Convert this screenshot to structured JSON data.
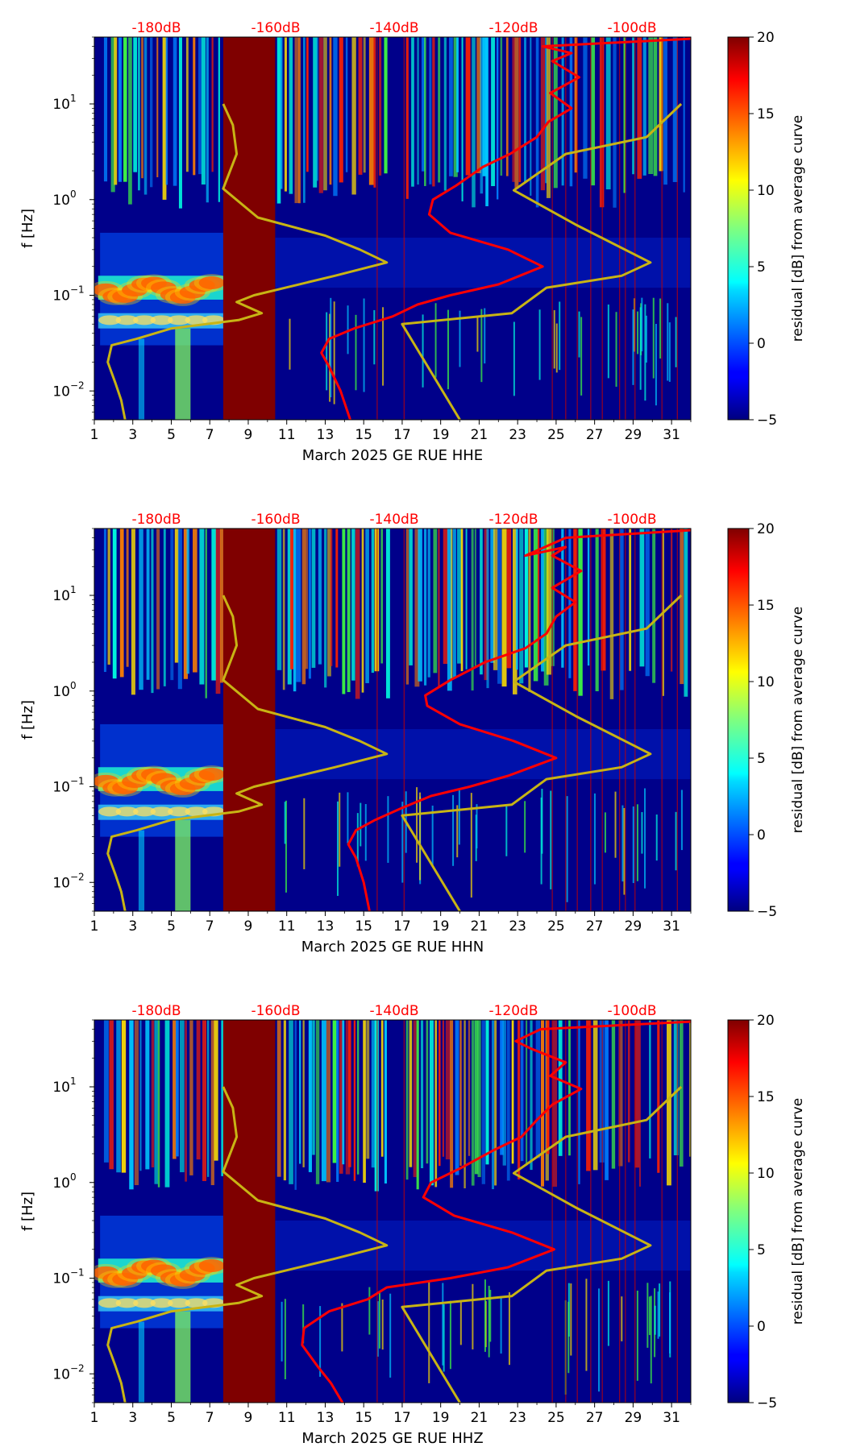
{
  "chart_data": [
    {
      "type": "heatmap",
      "channel": "HHE",
      "xlabel": "March 2025 GE RUE  HHE",
      "ylabel": "f [Hz]",
      "x_ticks": [
        "1",
        "3",
        "5",
        "7",
        "9",
        "11",
        "13",
        "15",
        "17",
        "19",
        "21",
        "23",
        "25",
        "27",
        "29",
        "31"
      ],
      "xlim": [
        1,
        32
      ],
      "y_scale": "log",
      "ylim": [
        0.005,
        50
      ],
      "y_ticks": [
        {
          "base": "10",
          "exp": "−2",
          "value": 0.01
        },
        {
          "base": "10",
          "exp": "−1",
          "value": 0.1
        },
        {
          "base": "10",
          "exp": "0",
          "value": 1
        },
        {
          "base": "10",
          "exp": "1",
          "value": 10
        }
      ],
      "top_labels": [
        "-180dB",
        "-160dB",
        "-140dB",
        "-120dB",
        "-100dB"
      ],
      "top_label_color": "#ff0000",
      "colorbar": {
        "label": "residual [dB] from average curve",
        "range": [
          -5,
          20
        ],
        "ticks": [
          "−5",
          "0",
          "5",
          "10",
          "15",
          "20"
        ],
        "colormap": "jet"
      },
      "gap_days": [
        7.7,
        10.4
      ],
      "series": [
        {
          "color": "#ff0000",
          "points": [
            [
              14.3,
              0.005
            ],
            [
              13.8,
              0.01
            ],
            [
              13.2,
              0.018
            ],
            [
              12.8,
              0.025
            ],
            [
              13.2,
              0.035
            ],
            [
              14.5,
              0.045
            ],
            [
              16.5,
              0.06
            ],
            [
              17.8,
              0.08
            ],
            [
              19.5,
              0.1
            ],
            [
              22,
              0.13
            ],
            [
              24.3,
              0.2
            ],
            [
              22.5,
              0.3
            ],
            [
              19.5,
              0.45
            ],
            [
              18.4,
              0.7
            ],
            [
              18.6,
              1.0
            ],
            [
              19.8,
              1.4
            ],
            [
              21.2,
              2.2
            ],
            [
              22.6,
              3.0
            ],
            [
              24,
              4.5
            ],
            [
              24.6,
              6.5
            ],
            [
              25.8,
              9
            ],
            [
              24.7,
              13
            ],
            [
              26.2,
              19
            ],
            [
              24.8,
              28
            ],
            [
              25.8,
              34
            ],
            [
              24.3,
              40
            ],
            [
              32,
              48
            ]
          ]
        },
        {
          "color": "#c8b414",
          "points": [
            [
              2.6,
              0.005
            ],
            [
              2.4,
              0.008
            ],
            [
              2.1,
              0.012
            ],
            [
              1.7,
              0.02
            ],
            [
              1.9,
              0.03
            ],
            [
              3.2,
              0.035
            ],
            [
              5.0,
              0.045
            ],
            [
              8.5,
              0.055
            ],
            [
              9.7,
              0.065
            ],
            [
              8.4,
              0.085
            ],
            [
              9.3,
              0.1
            ],
            [
              13.5,
              0.16
            ],
            [
              16.2,
              0.22
            ],
            [
              14.8,
              0.3
            ],
            [
              13.0,
              0.42
            ],
            [
              9.5,
              0.65
            ],
            [
              7.7,
              1.3
            ],
            [
              8.4,
              3
            ],
            [
              8.2,
              6
            ],
            [
              7.7,
              10
            ]
          ]
        },
        {
          "color": "#c8b414",
          "points": [
            [
              20,
              0.005
            ],
            [
              17,
              0.05
            ],
            [
              22.7,
              0.065
            ],
            [
              24.5,
              0.12
            ],
            [
              28.4,
              0.16
            ],
            [
              29.9,
              0.22
            ],
            [
              26,
              0.55
            ],
            [
              22.8,
              1.25
            ],
            [
              25.5,
              3
            ],
            [
              29.7,
              4.5
            ],
            [
              31.5,
              10
            ]
          ]
        }
      ]
    },
    {
      "type": "heatmap",
      "channel": "HHN",
      "xlabel": "March 2025 GE RUE  HHN",
      "ylabel": "f [Hz]",
      "x_ticks": [
        "1",
        "3",
        "5",
        "7",
        "9",
        "11",
        "13",
        "15",
        "17",
        "19",
        "21",
        "23",
        "25",
        "27",
        "29",
        "31"
      ],
      "xlim": [
        1,
        32
      ],
      "y_scale": "log",
      "ylim": [
        0.005,
        50
      ],
      "y_ticks": [
        {
          "base": "10",
          "exp": "−2",
          "value": 0.01
        },
        {
          "base": "10",
          "exp": "−1",
          "value": 0.1
        },
        {
          "base": "10",
          "exp": "0",
          "value": 1
        },
        {
          "base": "10",
          "exp": "1",
          "value": 10
        }
      ],
      "top_labels": [
        "-180dB",
        "-160dB",
        "-140dB",
        "-120dB",
        "-100dB"
      ],
      "top_label_color": "#ff0000",
      "colorbar": {
        "label": "residual [dB] from average curve",
        "range": [
          -5,
          20
        ],
        "ticks": [
          "−5",
          "0",
          "5",
          "10",
          "15",
          "20"
        ],
        "colormap": "jet"
      },
      "gap_days": [
        7.7,
        10.4
      ],
      "series": [
        {
          "color": "#ff0000",
          "points": [
            [
              15.3,
              0.005
            ],
            [
              15.0,
              0.01
            ],
            [
              14.6,
              0.018
            ],
            [
              14.2,
              0.025
            ],
            [
              14.6,
              0.035
            ],
            [
              15.6,
              0.045
            ],
            [
              17,
              0.06
            ],
            [
              18.5,
              0.08
            ],
            [
              20.5,
              0.1
            ],
            [
              22.5,
              0.13
            ],
            [
              25,
              0.2
            ],
            [
              22.8,
              0.3
            ],
            [
              20,
              0.45
            ],
            [
              18.3,
              0.7
            ],
            [
              18.2,
              0.9
            ],
            [
              19.5,
              1.3
            ],
            [
              21.3,
              2.0
            ],
            [
              23.4,
              2.8
            ],
            [
              24.5,
              4
            ],
            [
              25,
              6
            ],
            [
              26,
              8.5
            ],
            [
              24.8,
              12
            ],
            [
              26.3,
              18
            ],
            [
              24.8,
              26
            ],
            [
              25.5,
              32
            ],
            [
              23.4,
              26
            ],
            [
              25.5,
              40
            ],
            [
              32,
              48
            ]
          ]
        },
        {
          "color": "#c8b414",
          "points": [
            [
              2.6,
              0.005
            ],
            [
              2.4,
              0.008
            ],
            [
              2.1,
              0.012
            ],
            [
              1.7,
              0.02
            ],
            [
              1.9,
              0.03
            ],
            [
              3.2,
              0.035
            ],
            [
              5.0,
              0.045
            ],
            [
              8.5,
              0.055
            ],
            [
              9.7,
              0.065
            ],
            [
              8.4,
              0.085
            ],
            [
              9.3,
              0.1
            ],
            [
              13.5,
              0.16
            ],
            [
              16.2,
              0.22
            ],
            [
              14.8,
              0.3
            ],
            [
              13.0,
              0.42
            ],
            [
              9.5,
              0.65
            ],
            [
              7.7,
              1.3
            ],
            [
              8.4,
              3
            ],
            [
              8.2,
              6
            ],
            [
              7.7,
              10
            ]
          ]
        },
        {
          "color": "#c8b414",
          "points": [
            [
              20,
              0.005
            ],
            [
              17,
              0.05
            ],
            [
              22.7,
              0.065
            ],
            [
              24.5,
              0.12
            ],
            [
              28.4,
              0.16
            ],
            [
              29.9,
              0.22
            ],
            [
              26,
              0.55
            ],
            [
              22.8,
              1.25
            ],
            [
              25.5,
              3
            ],
            [
              29.7,
              4.5
            ],
            [
              31.5,
              10
            ]
          ]
        }
      ]
    },
    {
      "type": "heatmap",
      "channel": "HHZ",
      "xlabel": "March 2025 GE RUE  HHZ",
      "ylabel": "f [Hz]",
      "x_ticks": [
        "1",
        "3",
        "5",
        "7",
        "9",
        "11",
        "13",
        "15",
        "17",
        "19",
        "21",
        "23",
        "25",
        "27",
        "29",
        "31"
      ],
      "xlim": [
        1,
        32
      ],
      "y_scale": "log",
      "ylim": [
        0.005,
        50
      ],
      "y_ticks": [
        {
          "base": "10",
          "exp": "−2",
          "value": 0.01
        },
        {
          "base": "10",
          "exp": "−1",
          "value": 0.1
        },
        {
          "base": "10",
          "exp": "0",
          "value": 1
        },
        {
          "base": "10",
          "exp": "1",
          "value": 10
        }
      ],
      "top_labels": [
        "-180dB",
        "-160dB",
        "-140dB",
        "-120dB",
        "-100dB"
      ],
      "top_label_color": "#ff0000",
      "colorbar": {
        "label": "residual [dB] from average curve",
        "range": [
          -5,
          20
        ],
        "ticks": [
          "−5",
          "0",
          "5",
          "10",
          "15",
          "20"
        ],
        "colormap": "jet"
      },
      "gap_days": [
        7.7,
        10.4
      ],
      "series": [
        {
          "color": "#ff0000",
          "points": [
            [
              13.9,
              0.005
            ],
            [
              13.3,
              0.008
            ],
            [
              12.6,
              0.012
            ],
            [
              11.8,
              0.02
            ],
            [
              11.9,
              0.03
            ],
            [
              13.2,
              0.045
            ],
            [
              15.2,
              0.06
            ],
            [
              16.2,
              0.08
            ],
            [
              19.5,
              0.1
            ],
            [
              22.5,
              0.13
            ],
            [
              24.9,
              0.2
            ],
            [
              22.7,
              0.3
            ],
            [
              19.7,
              0.45
            ],
            [
              18.1,
              0.7
            ],
            [
              18.5,
              1.0
            ],
            [
              20,
              1.4
            ],
            [
              21.8,
              2.2
            ],
            [
              23.2,
              3.0
            ],
            [
              24,
              4.5
            ],
            [
              24.8,
              6.5
            ],
            [
              26.3,
              9.5
            ],
            [
              24.7,
              13
            ],
            [
              25.5,
              18
            ],
            [
              23.7,
              25
            ],
            [
              22.9,
              30
            ],
            [
              24.2,
              40
            ],
            [
              32,
              48
            ]
          ]
        },
        {
          "color": "#c8b414",
          "points": [
            [
              2.6,
              0.005
            ],
            [
              2.4,
              0.008
            ],
            [
              2.1,
              0.012
            ],
            [
              1.7,
              0.02
            ],
            [
              1.9,
              0.03
            ],
            [
              3.2,
              0.035
            ],
            [
              5.0,
              0.045
            ],
            [
              8.5,
              0.055
            ],
            [
              9.7,
              0.065
            ],
            [
              8.4,
              0.085
            ],
            [
              9.3,
              0.1
            ],
            [
              13.5,
              0.16
            ],
            [
              16.2,
              0.22
            ],
            [
              14.8,
              0.3
            ],
            [
              13.0,
              0.42
            ],
            [
              9.5,
              0.65
            ],
            [
              7.7,
              1.3
            ],
            [
              8.4,
              3
            ],
            [
              8.2,
              6
            ],
            [
              7.7,
              10
            ]
          ]
        },
        {
          "color": "#c8b414",
          "points": [
            [
              20,
              0.005
            ],
            [
              17,
              0.05
            ],
            [
              22.7,
              0.065
            ],
            [
              24.5,
              0.12
            ],
            [
              28.4,
              0.16
            ],
            [
              29.9,
              0.22
            ],
            [
              26,
              0.55
            ],
            [
              22.8,
              1.25
            ],
            [
              25.5,
              3
            ],
            [
              29.7,
              4.5
            ],
            [
              31.5,
              10
            ]
          ]
        }
      ]
    }
  ]
}
